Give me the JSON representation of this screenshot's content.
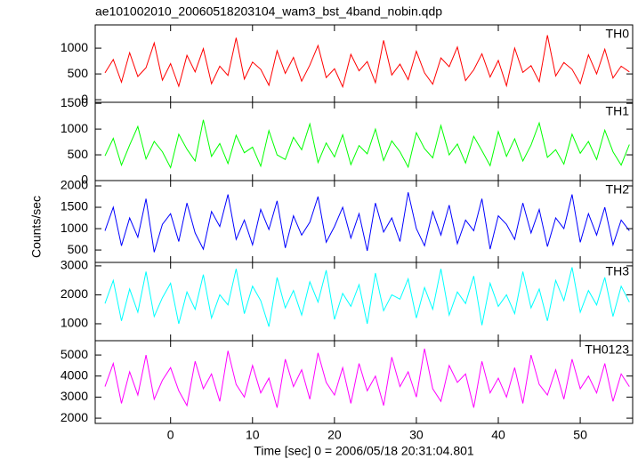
{
  "chart_data": [
    {
      "type": "line",
      "title": "ae101002010_20060518203104_wam3_bst_4band_nobin.qdp",
      "label": "TH0",
      "color": "#ff0000",
      "x": [
        -8,
        -7,
        -6,
        -5,
        -4,
        -3,
        -2,
        -1,
        0,
        1,
        2,
        3,
        4,
        5,
        6,
        7,
        8,
        9,
        10,
        11,
        12,
        13,
        14,
        15,
        16,
        17,
        18,
        19,
        20,
        21,
        22,
        23,
        24,
        25,
        26,
        27,
        28,
        29,
        30,
        31,
        32,
        33,
        34,
        35,
        36,
        37,
        38,
        39,
        40,
        41,
        42,
        43,
        44,
        45,
        46,
        47,
        48,
        49,
        50,
        51,
        52,
        53,
        54,
        55,
        56
      ],
      "values": [
        520,
        780,
        340,
        910,
        450,
        620,
        1100,
        380,
        700,
        260,
        860,
        540,
        990,
        310,
        650,
        470,
        1200,
        400,
        730,
        590,
        280,
        950,
        510,
        820,
        360,
        670,
        1050,
        430,
        600,
        250,
        880,
        560,
        740,
        330,
        1150,
        480,
        690,
        390,
        940,
        520,
        300,
        810,
        640,
        1020,
        370,
        580,
        890,
        440,
        760,
        270,
        1000,
        530,
        660,
        350,
        1250,
        460,
        720,
        590,
        310,
        870,
        500,
        980,
        420,
        650,
        540
      ],
      "xlim": [
        -9.2,
        56.4
      ],
      "xticks": [
        0,
        10,
        20,
        30,
        40,
        50
      ],
      "ylim": [
        -50,
        1450
      ],
      "yticks": [
        0,
        500,
        1000
      ]
    },
    {
      "type": "line",
      "label": "TH1",
      "color": "#00ff00",
      "x": [
        -8,
        -7,
        -6,
        -5,
        -4,
        -3,
        -2,
        -1,
        0,
        1,
        2,
        3,
        4,
        5,
        6,
        7,
        8,
        9,
        10,
        11,
        12,
        13,
        14,
        15,
        16,
        17,
        18,
        19,
        20,
        21,
        22,
        23,
        24,
        25,
        26,
        27,
        28,
        29,
        30,
        31,
        32,
        33,
        34,
        35,
        36,
        37,
        38,
        39,
        40,
        41,
        42,
        43,
        44,
        45,
        46,
        47,
        48,
        49,
        50,
        51,
        52,
        53,
        54,
        55,
        56
      ],
      "values": [
        480,
        820,
        300,
        690,
        1050,
        420,
        760,
        560,
        250,
        900,
        610,
        380,
        1180,
        470,
        720,
        330,
        880,
        540,
        650,
        280,
        970,
        500,
        410,
        840,
        600,
        1100,
        350,
        730,
        460,
        890,
        310,
        680,
        520,
        1000,
        390,
        770,
        560,
        260,
        930,
        620,
        440,
        1070,
        500,
        710,
        340,
        860,
        580,
        290,
        950,
        470,
        810,
        380,
        690,
        1120,
        450,
        600,
        320,
        900,
        530,
        760,
        410,
        980,
        560,
        300,
        700
      ],
      "xlim": [
        -9.2,
        56.4
      ],
      "xticks": [
        0,
        10,
        20,
        30,
        40,
        50
      ],
      "ylim": [
        0,
        1520
      ],
      "yticks": [
        0,
        500,
        1000,
        1500
      ]
    },
    {
      "type": "line",
      "label": "TH2",
      "ylabel": "Counts/sec",
      "color": "#0000ff",
      "x": [
        -8,
        -7,
        -6,
        -5,
        -4,
        -3,
        -2,
        -1,
        0,
        1,
        2,
        3,
        4,
        5,
        6,
        7,
        8,
        9,
        10,
        11,
        12,
        13,
        14,
        15,
        16,
        17,
        18,
        19,
        20,
        21,
        22,
        23,
        24,
        25,
        26,
        27,
        28,
        29,
        30,
        31,
        32,
        33,
        34,
        35,
        36,
        37,
        38,
        39,
        40,
        41,
        42,
        43,
        44,
        45,
        46,
        47,
        48,
        49,
        50,
        51,
        52,
        53,
        54,
        55,
        56
      ],
      "values": [
        950,
        1500,
        600,
        1250,
        800,
        1700,
        450,
        1100,
        1350,
        700,
        1600,
        900,
        520,
        1400,
        1050,
        1800,
        750,
        1200,
        620,
        1450,
        980,
        1650,
        550,
        1300,
        850,
        1150,
        1750,
        680,
        1050,
        1500,
        780,
        1350,
        480,
        1600,
        920,
        1250,
        700,
        1850,
        1000,
        600,
        1400,
        850,
        1550,
        650,
        1200,
        950,
        1700,
        520,
        1300,
        1100,
        750,
        1600,
        900,
        1450,
        580,
        1250,
        1000,
        1800,
        680,
        1350,
        850,
        1500,
        620,
        1200,
        950
      ],
      "xlim": [
        -9.2,
        56.4
      ],
      "xticks": [
        0,
        10,
        20,
        30,
        40,
        50
      ],
      "ylim": [
        210,
        2125
      ],
      "yticks": [
        500,
        1000,
        1500,
        2000
      ]
    },
    {
      "type": "line",
      "label": "TH3",
      "color": "#00ffff",
      "x": [
        -8,
        -7,
        -6,
        -5,
        -4,
        -3,
        -2,
        -1,
        0,
        1,
        2,
        3,
        4,
        5,
        6,
        7,
        8,
        9,
        10,
        11,
        12,
        13,
        14,
        15,
        16,
        17,
        18,
        19,
        20,
        21,
        22,
        23,
        24,
        25,
        26,
        27,
        28,
        29,
        30,
        31,
        32,
        33,
        34,
        35,
        36,
        37,
        38,
        39,
        40,
        41,
        42,
        43,
        44,
        45,
        46,
        47,
        48,
        49,
        50,
        51,
        52,
        53,
        54,
        55,
        56
      ],
      "values": [
        1700,
        2500,
        1100,
        2200,
        1400,
        2800,
        1250,
        1900,
        2400,
        1000,
        2100,
        1500,
        2700,
        1200,
        2000,
        1650,
        2900,
        1350,
        2300,
        1800,
        900,
        2600,
        1550,
        2150,
        1300,
        2450,
        1750,
        2850,
        1150,
        2050,
        1600,
        2350,
        1000,
        2750,
        1450,
        2000,
        1850,
        2550,
        1200,
        2250,
        1500,
        2900,
        1300,
        2100,
        1700,
        2650,
        950,
        2400,
        1600,
        2000,
        1350,
        2800,
        1550,
        2200,
        1100,
        2500,
        1800,
        2950,
        1400,
        2150,
        1650,
        2600,
        1250,
        2300,
        1750
      ],
      "xlim": [
        -9.2,
        56.4
      ],
      "xticks": [
        0,
        10,
        20,
        30,
        40,
        50
      ],
      "ylim": [
        415,
        3120
      ],
      "yticks": [
        1000,
        2000,
        3000
      ]
    },
    {
      "type": "line",
      "label": "TH0123",
      "xlabel": "Time [sec] 0 = 2006/05/18 20:31:04.801",
      "color": "#ff00ff",
      "x": [
        -8,
        -7,
        -6,
        -5,
        -4,
        -3,
        -2,
        -1,
        0,
        1,
        2,
        3,
        4,
        5,
        6,
        7,
        8,
        9,
        10,
        11,
        12,
        13,
        14,
        15,
        16,
        17,
        18,
        19,
        20,
        21,
        22,
        23,
        24,
        25,
        26,
        27,
        28,
        29,
        30,
        31,
        32,
        33,
        34,
        35,
        36,
        37,
        38,
        39,
        40,
        41,
        42,
        43,
        44,
        45,
        46,
        47,
        48,
        49,
        50,
        51,
        52,
        53,
        54,
        55,
        56
      ],
      "values": [
        3500,
        4600,
        2700,
        4200,
        3100,
        5000,
        2900,
        3800,
        4400,
        3300,
        2600,
        4700,
        3400,
        4100,
        2800,
        5200,
        3600,
        3000,
        4500,
        3200,
        3900,
        2500,
        4800,
        3500,
        4300,
        2900,
        5100,
        3700,
        3100,
        4400,
        2700,
        4600,
        3300,
        4000,
        2600,
        4900,
        3500,
        4200,
        3000,
        5300,
        3400,
        2800,
        4500,
        3700,
        4100,
        2500,
        4700,
        3200,
        3900,
        3000,
        4400,
        2700,
        5000,
        3600,
        3100,
        4300,
        2900,
        4800,
        3400,
        4000,
        3200,
        4600,
        2800,
        4100,
        3500
      ],
      "xlim": [
        -9.2,
        56.4
      ],
      "xticks": [
        0,
        10,
        20,
        30,
        40,
        50
      ],
      "ylim": [
        1750,
        5680
      ],
      "yticks": [
        2000,
        3000,
        4000,
        5000
      ]
    }
  ]
}
